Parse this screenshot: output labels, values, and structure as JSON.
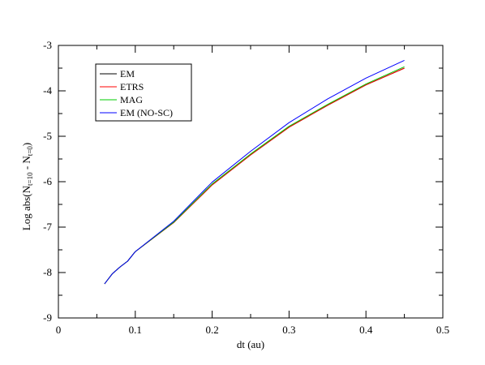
{
  "chart_data": {
    "type": "line",
    "xlabel": "dt (au)",
    "ylabel": {
      "prefix": "Log abs(N",
      "sub1": "t=10",
      "mid": " - N",
      "sub2": "t=0",
      "suffix": ")"
    },
    "xlim": [
      0,
      0.5
    ],
    "ylim": [
      -9,
      -3
    ],
    "xticks": [
      0,
      0.1,
      0.2,
      0.3,
      0.4,
      0.5
    ],
    "xtick_labels": [
      "0",
      "0.1",
      "0.2",
      "0.3",
      "0.4",
      "0.5"
    ],
    "yticks": [
      -9,
      -8,
      -7,
      -6,
      -5,
      -4,
      -3
    ],
    "ytick_labels": [
      "-9",
      "-8",
      "-7",
      "-6",
      "-5",
      "-4",
      "-3"
    ],
    "grid": false,
    "legend_position": "top-left",
    "x": [
      0.06,
      0.07,
      0.08,
      0.09,
      0.1,
      0.15,
      0.2,
      0.25,
      0.3,
      0.35,
      0.4,
      0.45
    ],
    "series": [
      {
        "name": "EM",
        "color": "#000000",
        "values": [
          -8.25,
          -8.03,
          -7.88,
          -7.75,
          -7.54,
          -6.9,
          -6.07,
          -5.41,
          -4.8,
          -4.32,
          -3.87,
          -3.5
        ]
      },
      {
        "name": "ETRS",
        "color": "#ff0000",
        "values": [
          -8.25,
          -8.03,
          -7.88,
          -7.75,
          -7.54,
          -6.9,
          -6.07,
          -5.41,
          -4.8,
          -4.32,
          -3.87,
          -3.5
        ]
      },
      {
        "name": "MAG",
        "color": "#00cc00",
        "values": [
          -8.25,
          -8.03,
          -7.88,
          -7.75,
          -7.54,
          -6.89,
          -6.05,
          -5.39,
          -4.78,
          -4.3,
          -3.85,
          -3.47
        ]
      },
      {
        "name": "EM (NO-SC)",
        "color": "#0000ff",
        "values": [
          -8.25,
          -8.03,
          -7.88,
          -7.75,
          -7.54,
          -6.87,
          -6.01,
          -5.33,
          -4.7,
          -4.18,
          -3.72,
          -3.33
        ]
      }
    ]
  }
}
